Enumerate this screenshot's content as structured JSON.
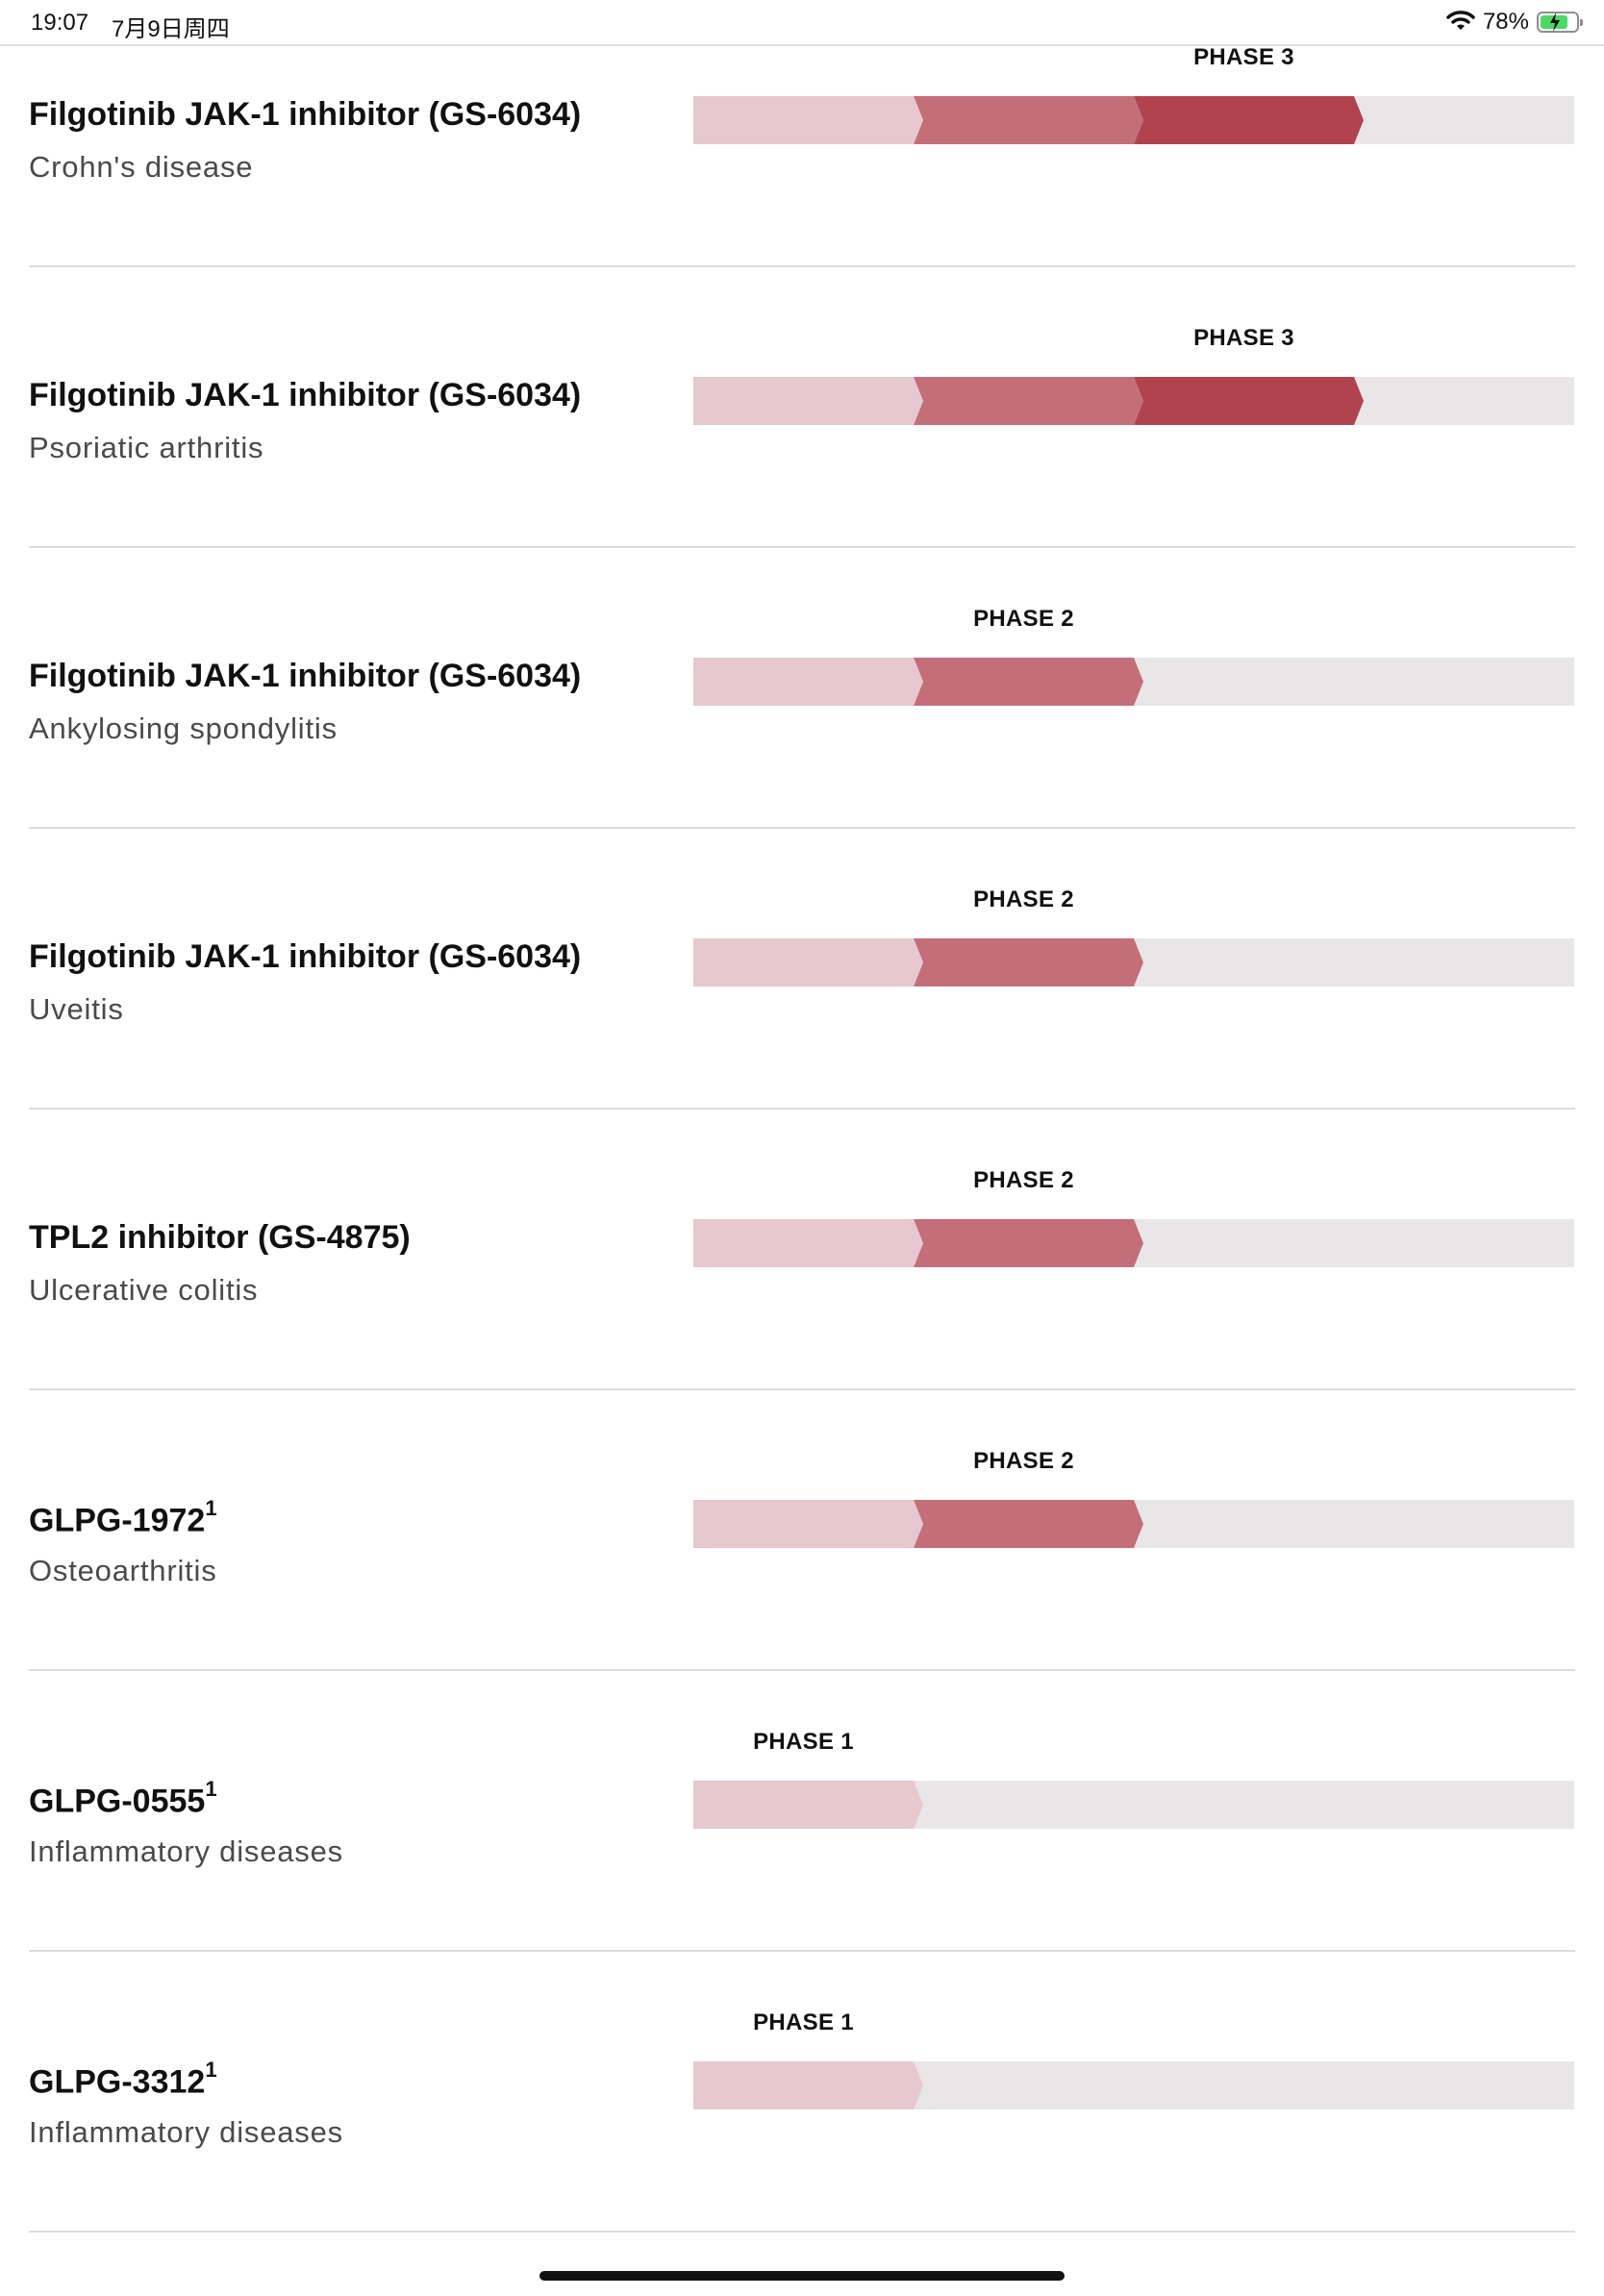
{
  "status_bar": {
    "time": "19:07",
    "date": "7月9日周四",
    "battery_text": "78%",
    "battery_level": 0.78,
    "wifi_icon": "wifi-icon",
    "battery_icon": "battery-charging-icon",
    "battery_color": "#4cd964"
  },
  "colors": {
    "phase1": "#e6c8ce",
    "phase2": "#c46e79",
    "phase3": "#b1434f",
    "track": "#e8e6e7"
  },
  "pipeline": [
    {
      "name": "Filgotinib JAK-1 inhibitor (GS-6034)",
      "sup": "",
      "indication": "Crohn's disease",
      "phase": 3,
      "phase_label": "PHASE 3"
    },
    {
      "name": "Filgotinib JAK-1 inhibitor (GS-6034)",
      "sup": "",
      "indication": "Psoriatic arthritis",
      "phase": 3,
      "phase_label": "PHASE 3"
    },
    {
      "name": "Filgotinib JAK-1 inhibitor (GS-6034)",
      "sup": "",
      "indication": "Ankylosing spondylitis",
      "phase": 2,
      "phase_label": "PHASE 2"
    },
    {
      "name": "Filgotinib JAK-1 inhibitor (GS-6034)",
      "sup": "",
      "indication": "Uveitis",
      "phase": 2,
      "phase_label": "PHASE 2"
    },
    {
      "name": "TPL2 inhibitor (GS-4875)",
      "sup": "",
      "indication": "Ulcerative colitis",
      "phase": 2,
      "phase_label": "PHASE 2"
    },
    {
      "name": "GLPG-1972",
      "sup": "1",
      "indication": "Osteoarthritis",
      "phase": 2,
      "phase_label": "PHASE 2"
    },
    {
      "name": "GLPG-0555",
      "sup": "1",
      "indication": "Inflammatory diseases",
      "phase": 1,
      "phase_label": "PHASE 1"
    },
    {
      "name": "GLPG-3312",
      "sup": "1",
      "indication": "Inflammatory diseases",
      "phase": 1,
      "phase_label": "PHASE 1"
    }
  ]
}
